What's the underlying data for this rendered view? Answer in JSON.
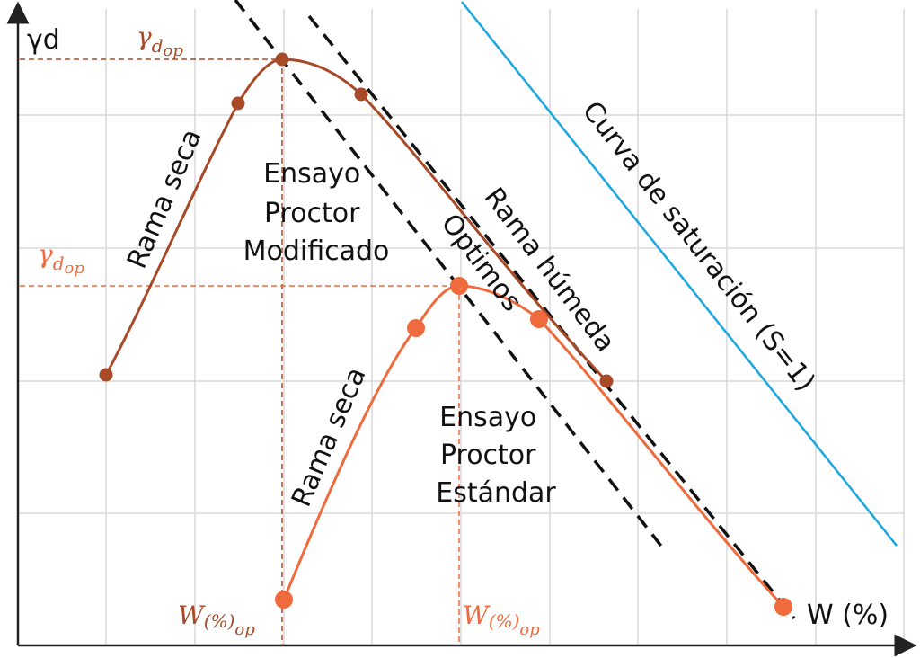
{
  "axes": {
    "y_label": "γd",
    "x_label": "W (%)"
  },
  "labels": {
    "gamma_op_symbol": "γ",
    "gamma_op_sub": "d",
    "gamma_op_subsub": "op",
    "w_op_symbol": "W",
    "w_op_sub": "(%)",
    "w_op_subsub": "op",
    "modified_test": [
      "Ensayo",
      "Proctor",
      "Modificado"
    ],
    "standard_test": [
      "Ensayo",
      "Proctor",
      "Estándar"
    ],
    "dry_branch_modified": "Rama seca",
    "dry_branch_standard": "Rama seca",
    "wet_branch": "Rama húmeda",
    "optimums": "Óptimos",
    "saturation_curve": "Curva de saturación (S=1)"
  },
  "colors": {
    "modified": "#a84a27",
    "standard": "#ef6a3c",
    "saturation": "#1aa6e0",
    "dashed": "#111111",
    "grid": "#d9d9d9",
    "axis": "#222222"
  }
}
